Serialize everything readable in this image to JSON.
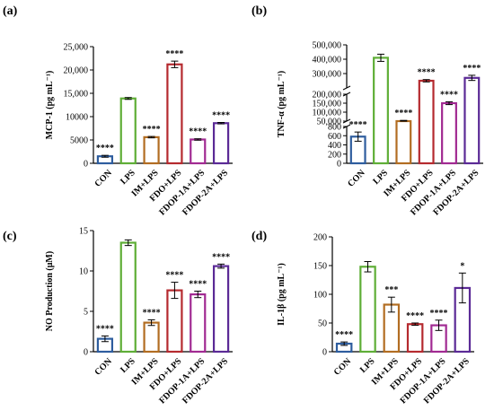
{
  "chart_data": [
    {
      "type": "bar",
      "panel_label": "(a)",
      "ylabel": "MCP-1 (pg mL⁻¹)",
      "categories": [
        "CON",
        "LPS",
        "IM+LPS",
        "FDO+LPS",
        "FDOP-1A+LPS",
        "FDOP-2A+LPS"
      ],
      "values": [
        1500,
        13900,
        5600,
        21200,
        5100,
        8600
      ],
      "errors": [
        200,
        200,
        150,
        700,
        150,
        150
      ],
      "significance": [
        "****",
        "",
        "****",
        "****",
        "****",
        "****"
      ],
      "ylim": [
        0,
        25000
      ],
      "yticks": [
        0,
        5000,
        10000,
        15000,
        20000,
        25000
      ],
      "ytick_labels": [
        "0",
        "5000",
        "10000",
        "15,000",
        "20,000",
        "25,000"
      ]
    },
    {
      "type": "bar",
      "panel_label": "(b)",
      "ylabel": "TNF-α (pg mL⁻¹)",
      "categories": [
        "CON",
        "LPS",
        "IM+LPS",
        "FDO+LPS",
        "FDOP-1A+LPS",
        "FDOP-2A+LPS"
      ],
      "values": [
        580,
        410000,
        50000,
        250000,
        150000,
        270000
      ],
      "errors": [
        100,
        25000,
        4000,
        8000,
        8000,
        18000
      ],
      "significance": [
        "****",
        "",
        "****",
        "****",
        "****",
        "****"
      ],
      "broken_axis": true,
      "segments": [
        [
          0,
          800
        ],
        [
          50000,
          200000
        ],
        [
          200000,
          500000
        ]
      ],
      "yticks": [
        0,
        200,
        400,
        600,
        800,
        50000,
        100000,
        150000,
        200000,
        300000,
        400000,
        500000
      ],
      "ytick_labels": [
        "0",
        "200",
        "400",
        "600",
        "800",
        "50,000",
        "100,000",
        "150,000",
        "200,000",
        "300,000",
        "400,000",
        "500,000"
      ]
    },
    {
      "type": "bar",
      "panel_label": "(c)",
      "ylabel": "NO Production (μM)",
      "categories": [
        "CON",
        "LPS",
        "IM+LPS",
        "FDO+LPS",
        "FDOP-1A+LPS",
        "FDOP-2A+LPS"
      ],
      "values": [
        1.6,
        13.5,
        3.6,
        7.6,
        7.1,
        10.6
      ],
      "errors": [
        0.35,
        0.35,
        0.35,
        1.0,
        0.4,
        0.25
      ],
      "significance": [
        "****",
        "",
        "****",
        "****",
        "****",
        "****"
      ],
      "ylim": [
        0,
        15
      ],
      "yticks": [
        0,
        5,
        10,
        15
      ],
      "ytick_labels": [
        "0",
        "5",
        "10",
        "15"
      ]
    },
    {
      "type": "bar",
      "panel_label": "(d)",
      "ylabel": "IL-1β (pg mL⁻¹)",
      "categories": [
        "CON",
        "LPS",
        "IM+LPS",
        "FDO+LPS",
        "FDOP-1A+LPS",
        "FDOP-2A+LPS"
      ],
      "values": [
        14,
        148,
        82,
        48,
        46,
        111
      ],
      "errors": [
        3,
        9,
        13,
        2,
        9,
        26
      ],
      "significance": [
        "****",
        "",
        "***",
        "****",
        "****",
        "*"
      ],
      "ylim": [
        0,
        200
      ],
      "yticks": [
        0,
        50,
        100,
        150,
        200
      ],
      "ytick_labels": [
        "0",
        "50",
        "100",
        "150",
        "200"
      ]
    }
  ],
  "colors": [
    "#2e5d9e",
    "#5fae37",
    "#b26d22",
    "#b52a2f",
    "#a12a92",
    "#5b2a96"
  ]
}
